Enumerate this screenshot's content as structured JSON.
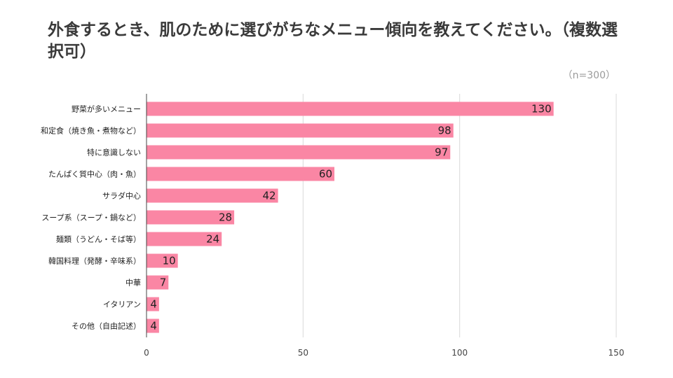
{
  "chart_data": {
    "type": "bar",
    "orientation": "horizontal",
    "title": "外食するとき、肌のために選びがちなメニュー傾向を教えてください。（複数選択可）",
    "note": "（n=300）",
    "categories": [
      "野菜が多いメニュー",
      "和定食（焼き魚・煮物など）",
      "特に意識しない",
      "たんぱく質中心（肉・魚）",
      "サラダ中心",
      "スープ系（スープ・鍋など）",
      "麺類（うどん・そば等）",
      "韓国料理（発酵・辛味系）",
      "中華",
      "イタリアン",
      "その他（自由記述）"
    ],
    "values": [
      130,
      98,
      97,
      60,
      42,
      28,
      24,
      10,
      7,
      4,
      4
    ],
    "xlim": [
      0,
      150
    ],
    "xticks": [
      0,
      50,
      100,
      150
    ],
    "grid": true,
    "legend": "none",
    "bar_color": "#fa86a4"
  }
}
